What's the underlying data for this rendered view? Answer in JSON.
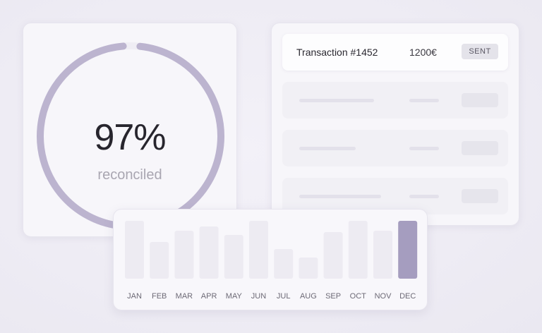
{
  "progress": {
    "percent_text": "97%",
    "caption": "reconciled",
    "value": 0.97,
    "track_color": "#efedf4",
    "fill_color": "#bcb4cf"
  },
  "transactions": {
    "rows": [
      {
        "title": "Transaction #1452",
        "amount": "1200€",
        "status": "SENT"
      }
    ],
    "placeholder_rows": 3
  },
  "chart_data": {
    "type": "bar",
    "categories": [
      "JAN",
      "FEB",
      "MAR",
      "APR",
      "MAY",
      "JUN",
      "JUL",
      "AUG",
      "SEP",
      "OCT",
      "NOV",
      "DEC"
    ],
    "values": [
      82,
      52,
      68,
      74,
      62,
      82,
      42,
      30,
      66,
      82,
      68,
      82
    ],
    "highlighted": "DEC",
    "bar_color": "#edebf2",
    "highlight_color": "#a59dbf",
    "ylim": [
      0,
      82
    ]
  }
}
